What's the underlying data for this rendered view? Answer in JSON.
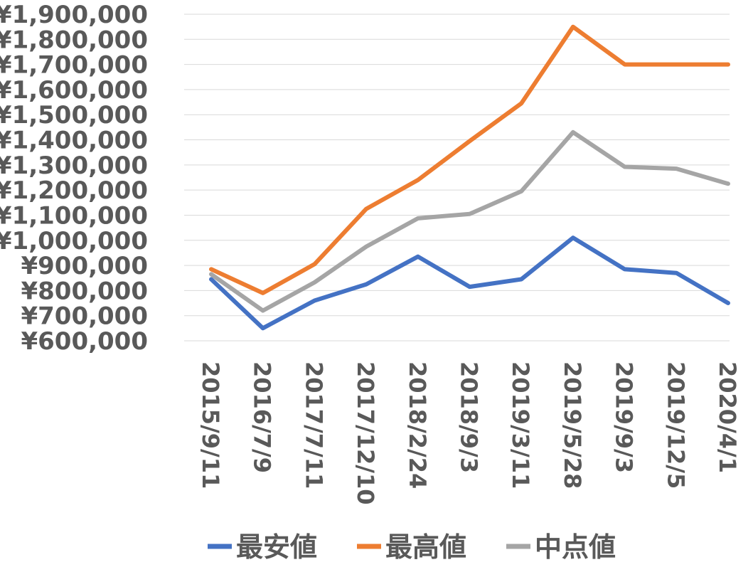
{
  "chart_data": {
    "type": "line",
    "title": "",
    "xlabel": "",
    "ylabel": "",
    "categories": [
      "2015/9/11",
      "2016/7/9",
      "2017/7/11",
      "2017/12/10",
      "2018/2/24",
      "2018/9/3",
      "2019/3/11",
      "2019/5/28",
      "2019/9/3",
      "2019/12/5",
      "2020/4/1"
    ],
    "y_ticks": [
      "¥600,000",
      "¥700,000",
      "¥800,000",
      "¥900,000",
      "¥1,000,000",
      "¥1,100,000",
      "¥1,200,000",
      "¥1,300,000",
      "¥1,400,000",
      "¥1,500,000",
      "¥1,600,000",
      "¥1,700,000",
      "¥1,800,000",
      "¥1,900,000"
    ],
    "ylim": [
      600000,
      1900000
    ],
    "grid": true,
    "legend_position": "bottom",
    "series": [
      {
        "name": "最安値",
        "color": "#4472c4",
        "values": [
          845000,
          650000,
          760000,
          825000,
          935000,
          815000,
          845000,
          1010000,
          885000,
          870000,
          750000
        ]
      },
      {
        "name": "最高値",
        "color": "#ed7d31",
        "values": [
          885000,
          790000,
          905000,
          1125000,
          1240000,
          1395000,
          1545000,
          1850000,
          1700000,
          1700000,
          1700000
        ]
      },
      {
        "name": "中点値",
        "color": "#a5a5a5",
        "values": [
          865000,
          720000,
          832500,
          975000,
          1087500,
          1105000,
          1195000,
          1430000,
          1292500,
          1285000,
          1225000
        ]
      }
    ]
  }
}
